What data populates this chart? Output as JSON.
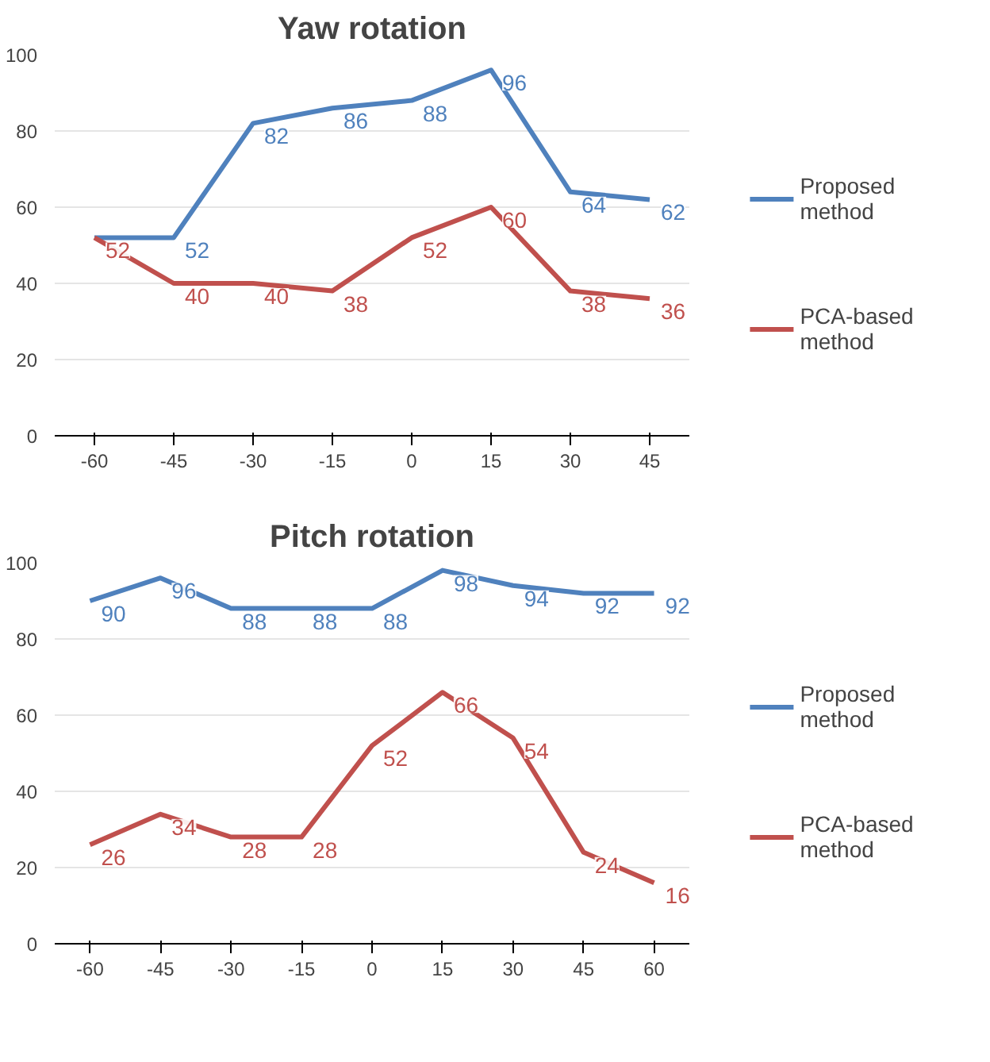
{
  "chart_data": [
    {
      "type": "line",
      "title": "Yaw rotation",
      "categories": [
        "-60",
        "-45",
        "-30",
        "-15",
        "0",
        "15",
        "30",
        "45"
      ],
      "ylim": [
        0,
        100
      ],
      "yticks": [
        0,
        20,
        40,
        60,
        80,
        100
      ],
      "grid": "y",
      "legend": "right",
      "marker": "none",
      "line_style": "solid",
      "series": [
        {
          "name": "Proposed method",
          "color": "#4f81bd",
          "values": [
            52,
            52,
            82,
            86,
            88,
            96,
            64,
            62
          ],
          "value_labels": [
            null,
            "52",
            "82",
            "86",
            "88",
            "96",
            "64",
            "62"
          ]
        },
        {
          "name": "PCA-based method",
          "color": "#c0504d",
          "values": [
            52,
            40,
            40,
            38,
            52,
            60,
            38,
            36
          ],
          "value_labels": [
            "52",
            "40",
            "40",
            "38",
            "52",
            "60",
            "38",
            "36"
          ]
        }
      ]
    },
    {
      "type": "line",
      "title": "Pitch rotation",
      "categories": [
        "-60",
        "-45",
        "-30",
        "-15",
        "0",
        "15",
        "30",
        "45",
        "60"
      ],
      "ylim": [
        0,
        100
      ],
      "yticks": [
        0,
        20,
        40,
        60,
        80,
        100
      ],
      "grid": "y",
      "legend": "right",
      "marker": "none",
      "line_style": "solid",
      "series": [
        {
          "name": "Proposed method",
          "color": "#4f81bd",
          "values": [
            90,
            96,
            88,
            88,
            88,
            98,
            94,
            92,
            92
          ],
          "value_labels": [
            "90",
            "96",
            "88",
            "88",
            "88",
            "98",
            "94",
            "92",
            "92"
          ]
        },
        {
          "name": "PCA-based method",
          "color": "#c0504d",
          "values": [
            26,
            34,
            28,
            28,
            52,
            66,
            54,
            24,
            16
          ],
          "value_labels": [
            "26",
            "34",
            "28",
            "28",
            "52",
            "66",
            "54",
            "24",
            "16"
          ]
        }
      ]
    }
  ]
}
